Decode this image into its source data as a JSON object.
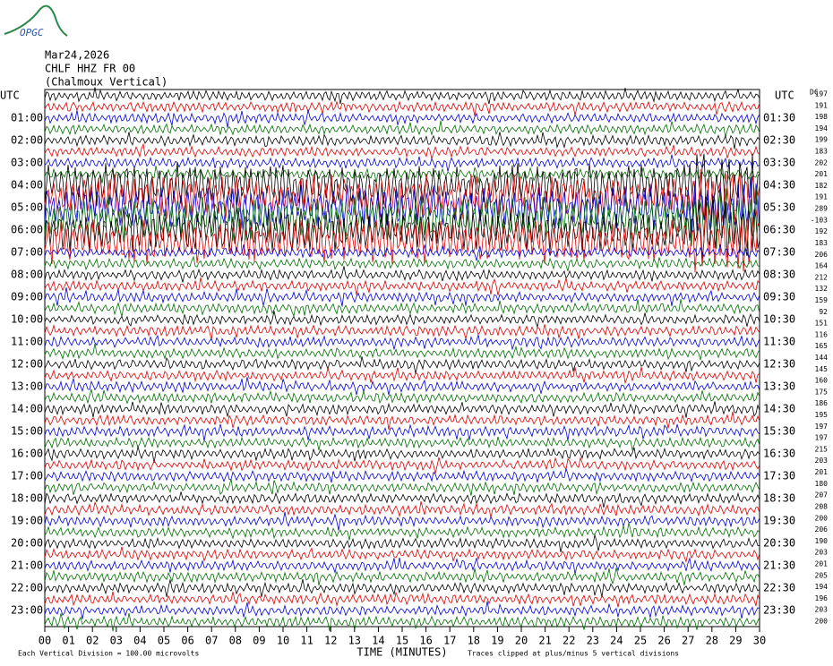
{
  "logo": "OPGC",
  "header": {
    "date": "Mar24,2026",
    "station": "CHLF HHZ FR 00",
    "channel": "(Chalmoux Vertical)"
  },
  "left_axis": {
    "title": "UTC",
    "labels": [
      "01:00",
      "02:00",
      "03:00",
      "04:00",
      "05:00",
      "06:00",
      "07:00",
      "08:00",
      "09:00",
      "10:00",
      "11:00",
      "12:00",
      "13:00",
      "14:00",
      "15:00",
      "16:00",
      "17:00",
      "18:00",
      "19:00",
      "20:00",
      "21:00",
      "22:00",
      "23:00"
    ]
  },
  "right_axis": {
    "title": "UTC",
    "labels": [
      "01:30",
      "02:30",
      "03:30",
      "04:30",
      "05:30",
      "06:30",
      "07:30",
      "08:30",
      "09:30",
      "10:30",
      "11:30",
      "12:30",
      "13:30",
      "14:30",
      "15:30",
      "16:30",
      "17:30",
      "18:30",
      "19:30",
      "20:30",
      "21:30",
      "22:30",
      "23:30"
    ]
  },
  "offsets": {
    "title": "DC",
    "values": [
      197,
      191,
      198,
      194,
      199,
      183,
      202,
      201,
      182,
      191,
      289,
      -103,
      192,
      183,
      206,
      164,
      212,
      132,
      159,
      92,
      151,
      116,
      165,
      144,
      145,
      160,
      175,
      186,
      195,
      197,
      197,
      215,
      203,
      201,
      180,
      207,
      208,
      200,
      206,
      190,
      203,
      201,
      205,
      194,
      196,
      203,
      200
    ]
  },
  "x_axis": {
    "title": "TIME (MINUTES)",
    "labels": [
      "00",
      "01",
      "02",
      "03",
      "04",
      "05",
      "06",
      "07",
      "08",
      "09",
      "10",
      "11",
      "12",
      "13",
      "14",
      "15",
      "16",
      "17",
      "18",
      "19",
      "20",
      "21",
      "22",
      "23",
      "24",
      "25",
      "26",
      "27",
      "28",
      "29",
      "30"
    ]
  },
  "footer": {
    "scale": "Each Vertical Division =  100.00 microvolts",
    "clip": "Traces clipped at plus/minus 5 vertical divisions"
  }
}
